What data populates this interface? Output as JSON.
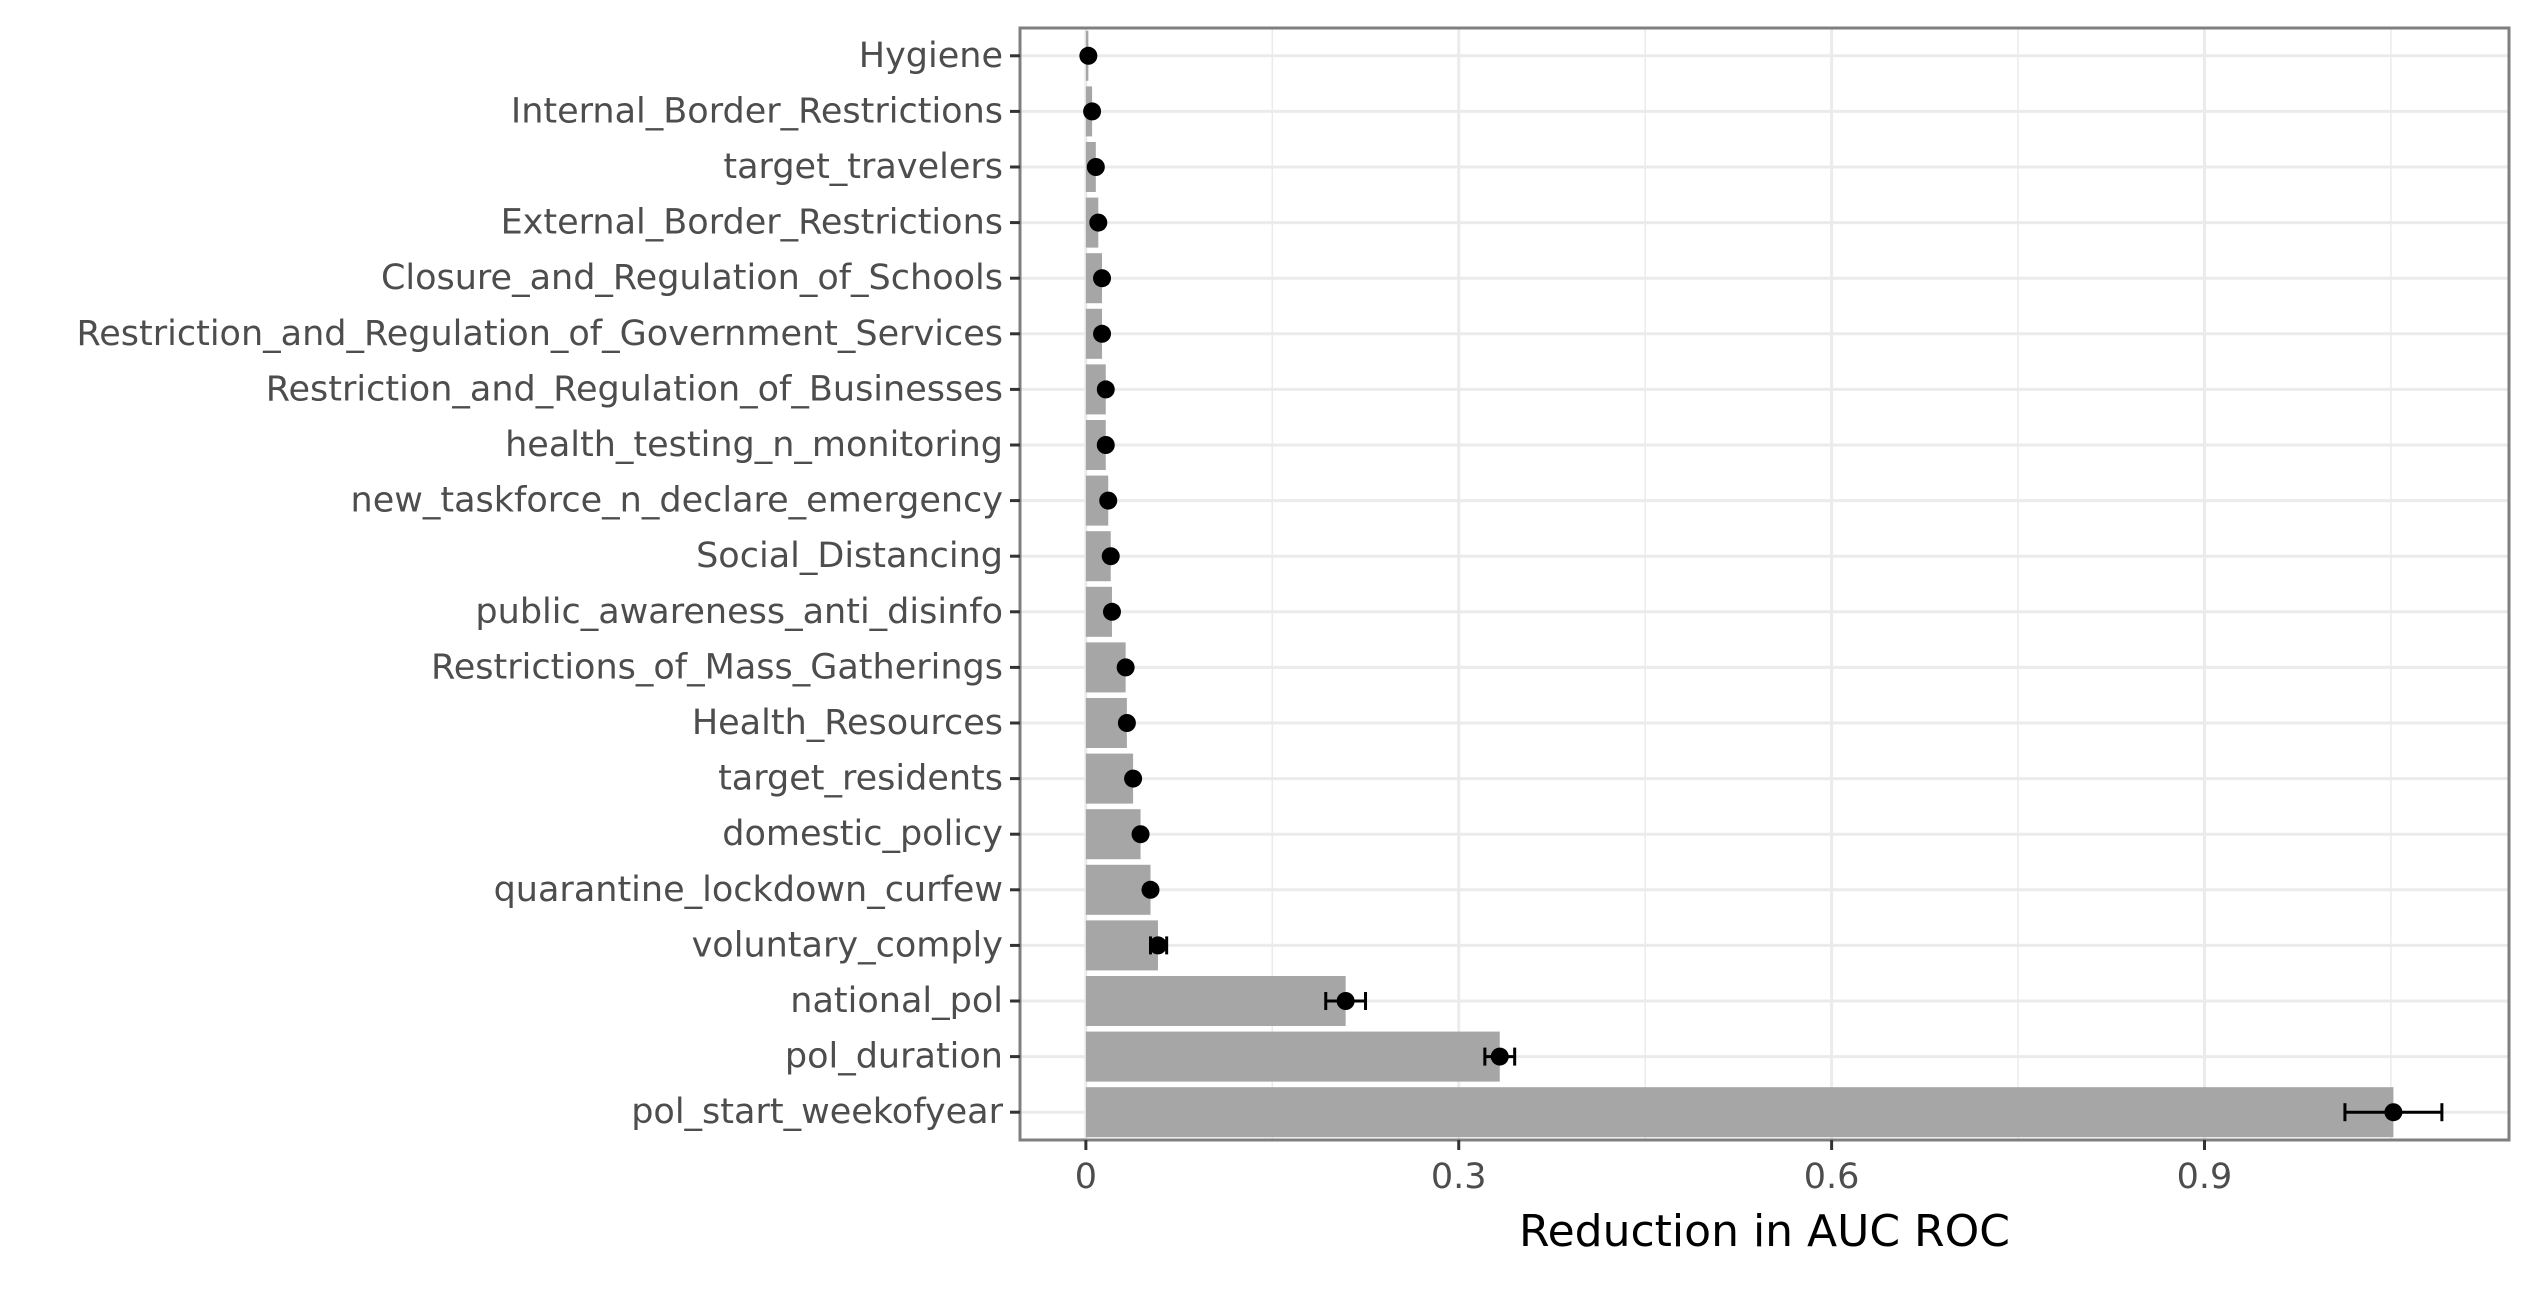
{
  "chart_data": {
    "type": "bar",
    "orientation": "horizontal",
    "title": "",
    "xlabel": "Reduction in AUC ROC",
    "ylabel": "",
    "xlim": [
      -0.053,
      1.145
    ],
    "xticks": [
      0,
      0.3,
      0.6,
      0.9
    ],
    "xtick_labels": [
      "0",
      "0.3",
      "0.6",
      "0.9"
    ],
    "grid": true,
    "legend": "none",
    "colors": {
      "bar": "#a6a6a6",
      "point": "#000000",
      "grid": "#ebebeb",
      "panel_border": "#7f7f7f"
    },
    "categories": [
      "Hygiene",
      "Internal_Border_Restrictions",
      "target_travelers",
      "External_Border_Restrictions",
      "Closure_and_Regulation_of_Schools",
      "Restriction_and_Regulation_of_Government_Services",
      "Restriction_and_Regulation_of_Businesses",
      "health_testing_n_monitoring",
      "new_taskforce_n_declare_emergency",
      "Social_Distancing",
      "public_awareness_anti_disinfo",
      "Restrictions_of_Mass_Gatherings",
      "Health_Resources",
      "target_residents",
      "domestic_policy",
      "quarantine_lockdown_curfew",
      "voluntary_comply",
      "national_pol",
      "pol_duration",
      "pol_start_weekofyear"
    ],
    "values": [
      0.002,
      0.005,
      0.008,
      0.01,
      0.013,
      0.013,
      0.016,
      0.016,
      0.018,
      0.02,
      0.021,
      0.032,
      0.033,
      0.038,
      0.044,
      0.052,
      0.058,
      0.209,
      0.333,
      1.052
    ],
    "points": [
      0.002,
      0.005,
      0.008,
      0.01,
      0.013,
      0.013,
      0.016,
      0.016,
      0.018,
      0.02,
      0.021,
      0.032,
      0.033,
      0.038,
      0.044,
      0.052,
      0.058,
      0.209,
      0.333,
      1.052
    ],
    "error_low": [
      null,
      null,
      null,
      null,
      null,
      null,
      null,
      null,
      null,
      null,
      null,
      null,
      null,
      null,
      null,
      null,
      0.052,
      0.193,
      0.321,
      1.013
    ],
    "error_high": [
      null,
      null,
      null,
      null,
      null,
      null,
      null,
      null,
      null,
      null,
      null,
      null,
      null,
      null,
      null,
      null,
      0.065,
      0.225,
      0.345,
      1.091
    ]
  }
}
